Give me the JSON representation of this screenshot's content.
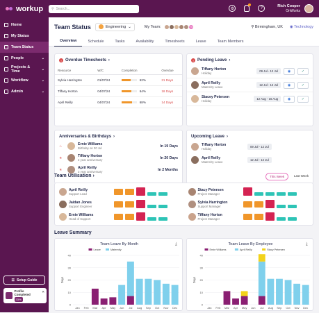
{
  "brand": {
    "name": "workup"
  },
  "search": {
    "placeholder": "Search..."
  },
  "user": {
    "name": "Rich Cooper",
    "company": "OnWorks"
  },
  "sidebar": {
    "items": [
      {
        "label": "Home",
        "icon": "home-icon"
      },
      {
        "label": "My Status",
        "icon": "user-icon"
      },
      {
        "label": "Team Status",
        "icon": "team-icon",
        "active": true
      },
      {
        "label": "People",
        "icon": "people-icon",
        "chevron": true
      },
      {
        "label": "Projects & Time",
        "icon": "briefcase-icon",
        "chevron": true
      },
      {
        "label": "Workflow",
        "icon": "workflow-icon",
        "chevron": true
      },
      {
        "label": "Admin",
        "icon": "admin-icon",
        "chevron": true
      }
    ],
    "setup_guide": "Setup Guide",
    "profile": {
      "label": "Profile Completed",
      "percent": "33%"
    }
  },
  "header": {
    "title": "Team Status",
    "department": "Engineering",
    "my_team_label": "My Team:",
    "team_extra": "+4",
    "location": "Birmingham, UK",
    "group": "Technology"
  },
  "tabs": [
    "Overview",
    "Schedule",
    "Tasks",
    "Availability",
    "Timesheets",
    "Leave",
    "Team Members"
  ],
  "overdue": {
    "title": "Overdue Timesheets",
    "columns": [
      "Resource",
      "W/C",
      "Completion",
      "Overdue"
    ],
    "rows": [
      {
        "name": "Sylvia Harrington",
        "wc": "01/07/24",
        "pct": "62%",
        "pct_value": 62,
        "overdue": "21 Days"
      },
      {
        "name": "Tiffany Horton",
        "wc": "04/07/24",
        "pct": "64%",
        "pct_value": 64,
        "overdue": "18 Days"
      },
      {
        "name": "April Reilly",
        "wc": "04/07/24",
        "pct": "68%",
        "pct_value": 68,
        "overdue": "14 Days"
      }
    ]
  },
  "pending": {
    "title": "Pending Leave",
    "items": [
      {
        "name": "Tiffany Horton",
        "type": "Holiday",
        "date": "09 Jul - 12 Jul"
      },
      {
        "name": "April Reilly",
        "type": "Maternity Leave",
        "date": "12 Jul - 12 Jul"
      },
      {
        "name": "Stacey Petersen",
        "type": "Holiday",
        "date": "12 Aug - 16 Aug"
      }
    ]
  },
  "anniversaries": {
    "title": "Anniversaries & Birthdays",
    "items": [
      {
        "name": "Ernie Williams",
        "sub": "Birthday on 30 Jul",
        "when": "In 19 Days"
      },
      {
        "name": "Tiffany Horton",
        "sub": "2 year anniversary",
        "when": "In 20 Days"
      },
      {
        "name": "April Reilly",
        "sub": "3 year anniversary",
        "when": "In 2 Months"
      }
    ]
  },
  "upcoming": {
    "title": "Upcoming Leave",
    "items": [
      {
        "name": "Tiffany Horton",
        "type": "Holiday",
        "date": "09 Jul - 12 Jul"
      },
      {
        "name": "April Reilly",
        "type": "Maternity Leave",
        "date": "12 Jul - 12 Jul"
      }
    ]
  },
  "utilisation": {
    "title": "Team Utilisation",
    "this_week": "This Week",
    "last_week": "Last Week",
    "left": [
      {
        "name": "April Reilly",
        "role": "Support Lead",
        "days": [
          "orange",
          "orange",
          "red",
          "teal",
          "teal"
        ]
      },
      {
        "name": "Jaidan Jones",
        "role": "Support Engineer",
        "days": [
          "orange",
          "orange",
          "red",
          "teal",
          "teal"
        ]
      },
      {
        "name": "Ernie Williams",
        "role": "Head of Support",
        "days": [
          "orange",
          "orange",
          "red",
          "teal",
          "teal"
        ]
      }
    ],
    "right": [
      {
        "name": "Stacy Petersen",
        "role": "Project Manager",
        "days": [
          "red",
          "teal",
          "teal",
          "teal",
          "teal"
        ]
      },
      {
        "name": "Sylvia Harrington",
        "role": "Support Manager",
        "days": [
          "orange",
          "orange",
          "red",
          "teal",
          "teal"
        ]
      },
      {
        "name": "Tiffany Horton",
        "role": "Project Manager",
        "days": [
          "orange",
          "orange",
          "red",
          "teal",
          "teal"
        ]
      }
    ]
  },
  "leave_summary": {
    "title": "Leave Summary"
  },
  "chart_data": [
    {
      "type": "bar",
      "title": "Team Leave By Month",
      "ylabel": "Days",
      "ylim": [
        0,
        40
      ],
      "categories": [
        "Jan",
        "Feb",
        "Mar",
        "Apr",
        "May",
        "Jun",
        "Jul",
        "Aug",
        "Sep",
        "Oct",
        "Nov",
        "Dec"
      ],
      "series": [
        {
          "name": "Leave",
          "color": "#8a1f72",
          "values": [
            0,
            0,
            13,
            5,
            6,
            0,
            7,
            0,
            0,
            0,
            0,
            0
          ]
        },
        {
          "name": "Maternity",
          "color": "#7fd0ec",
          "values": [
            0,
            0,
            0,
            0,
            0,
            16,
            28,
            21,
            21,
            20,
            17,
            16
          ]
        }
      ]
    },
    {
      "type": "bar",
      "title": "Team Leave By Employee",
      "ylabel": "Days",
      "ylim": [
        0,
        40
      ],
      "categories": [
        "Jan",
        "Feb",
        "Mar",
        "Apr",
        "May",
        "Jun",
        "Jul",
        "Aug",
        "Sep",
        "Oct",
        "Nov",
        "Dec"
      ],
      "series": [
        {
          "name": "Ernie Williams",
          "color": "#8a1f72",
          "values": [
            0,
            0,
            11,
            5,
            7,
            0,
            7,
            0,
            0,
            0,
            0,
            0
          ]
        },
        {
          "name": "April Reilly",
          "color": "#7fd0ec",
          "values": [
            0,
            0,
            0,
            0,
            0,
            0,
            28,
            21,
            21,
            20,
            17,
            16
          ]
        },
        {
          "name": "Stacy Petersen",
          "color": "#f2d21a",
          "values": [
            0,
            0,
            0,
            0,
            4,
            0,
            6,
            0,
            0,
            0,
            0,
            0
          ]
        }
      ]
    }
  ]
}
